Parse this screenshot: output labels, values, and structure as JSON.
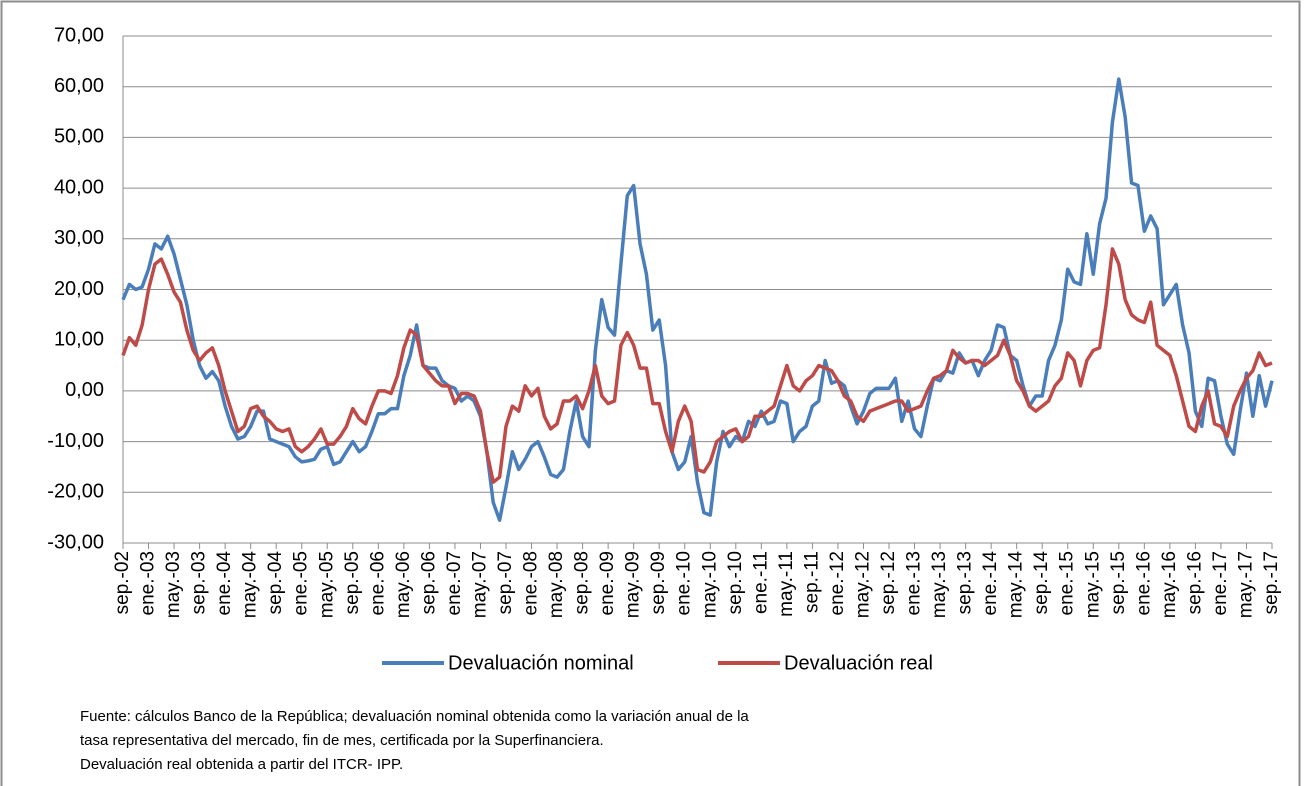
{
  "chart_data": {
    "type": "line",
    "categories": [
      "sep.-02",
      null,
      null,
      null,
      "ene.-03",
      null,
      null,
      null,
      "may.-03",
      null,
      null,
      null,
      "sep.-03",
      null,
      null,
      null,
      "ene.-04",
      null,
      null,
      null,
      "may.-04",
      null,
      null,
      null,
      "sep.-04",
      null,
      null,
      null,
      "ene.-05",
      null,
      null,
      null,
      "may.-05",
      null,
      null,
      null,
      "sep.-05",
      null,
      null,
      null,
      "ene.-06",
      null,
      null,
      null,
      "may.-06",
      null,
      null,
      null,
      "sep.-06",
      null,
      null,
      null,
      "ene.-07",
      null,
      null,
      null,
      "may.-07",
      null,
      null,
      null,
      "sep.-07",
      null,
      null,
      null,
      "ene.-08",
      null,
      null,
      null,
      "may.-08",
      null,
      null,
      null,
      "sep.-08",
      null,
      null,
      null,
      "ene.-09",
      null,
      null,
      null,
      "may.-09",
      null,
      null,
      null,
      "sep.-09",
      null,
      null,
      null,
      "ene.-10",
      null,
      null,
      null,
      "may.-10",
      null,
      null,
      null,
      "sep.-10",
      null,
      null,
      null,
      "ene.-11",
      null,
      null,
      null,
      "may.-11",
      null,
      null,
      null,
      "sep.-11",
      null,
      null,
      null,
      "ene.-12",
      null,
      null,
      null,
      "may.-12",
      null,
      null,
      null,
      "sep.-12",
      null,
      null,
      null,
      "ene.-13",
      null,
      null,
      null,
      "may.-13",
      null,
      null,
      null,
      "sep.-13",
      null,
      null,
      null,
      "ene.-14",
      null,
      null,
      null,
      "may.-14",
      null,
      null,
      null,
      "sep.-14",
      null,
      null,
      null,
      "ene.-15",
      null,
      null,
      null,
      "may.-15",
      null,
      null,
      null,
      "sep.-15",
      null,
      null,
      null,
      "ene.-16",
      null,
      null,
      null,
      "may.-16",
      null,
      null,
      null,
      "sep.-16",
      null,
      null,
      null,
      "ene.-17",
      null,
      null,
      null,
      "may.-17",
      null,
      null,
      null,
      "sep.-17"
    ],
    "series": [
      {
        "name": "Devaluación nominal",
        "color": "#4a7ebb",
        "values": [
          18,
          21,
          20,
          20.5,
          24,
          29,
          28,
          30.5,
          27,
          22,
          17,
          10,
          5,
          2.5,
          3.8,
          2,
          -3,
          -7,
          -9.5,
          -9,
          -7,
          -4,
          -4,
          -9.5,
          -10,
          -10.5,
          -11,
          -13,
          -14,
          -13.8,
          -13.5,
          -11.5,
          -11,
          -14.5,
          -14,
          -12,
          -10,
          -12,
          -11,
          -8,
          -4.5,
          -4.5,
          -3.5,
          -3.5,
          3,
          7,
          13,
          5,
          4.5,
          4.5,
          2,
          1,
          0.5,
          -2,
          -1,
          -2,
          -5,
          -12,
          -22,
          -25.5,
          -19,
          -12,
          -15.5,
          -13.5,
          -11,
          -10,
          -13,
          -16.5,
          -17,
          -15.5,
          -8,
          -2,
          -9,
          -11,
          8,
          18,
          12.5,
          11,
          25,
          38.5,
          40.5,
          29,
          23,
          12,
          14,
          5,
          -12,
          -15.5,
          -14,
          -9,
          -18,
          -24,
          -24.5,
          -14,
          -8,
          -11,
          -9,
          -10,
          -6,
          -7,
          -4,
          -6.5,
          -6,
          -2,
          -2.5,
          -10,
          -8,
          -7,
          -3,
          -2,
          6,
          1.5,
          2,
          1,
          -3,
          -6.5,
          -4,
          -0.5,
          0.5,
          0.5,
          0.5,
          2.5,
          -6,
          -2,
          -7.5,
          -9,
          -3,
          2.5,
          2,
          4,
          3.5,
          7.5,
          5.5,
          6,
          3,
          6,
          8,
          13,
          12.5,
          7,
          6,
          1,
          -3,
          -1,
          -1,
          6,
          9,
          14,
          24,
          21.5,
          21,
          31,
          23,
          33,
          38,
          53,
          61.5,
          54,
          41,
          40.5,
          31.5,
          34.5,
          32,
          17,
          19,
          21,
          13,
          7.5,
          -4,
          -7,
          2.5,
          2,
          -5,
          -10.5,
          -12.5,
          -4,
          3.5,
          -5,
          3,
          -3,
          2
        ]
      },
      {
        "name": "Devaluación real",
        "color": "#be4b48",
        "values": [
          7,
          10.5,
          9,
          13,
          20,
          25,
          26,
          23,
          19.5,
          17.5,
          12,
          8,
          6,
          7.5,
          8.5,
          5,
          0,
          -4,
          -8,
          -7,
          -3.5,
          -3,
          -5,
          -6,
          -7.5,
          -8,
          -7.5,
          -11,
          -12,
          -11,
          -9.5,
          -7.5,
          -10.5,
          -10.5,
          -9,
          -7,
          -3.5,
          -5.5,
          -6.5,
          -3,
          0,
          0,
          -0.5,
          3,
          8.5,
          12,
          11,
          5,
          3.5,
          2,
          1,
          1,
          -2.5,
          -0.5,
          -0.5,
          -1,
          -4,
          -12,
          -18,
          -17,
          -7,
          -3,
          -4,
          1,
          -1,
          0.5,
          -5,
          -7.5,
          -6.5,
          -2,
          -2,
          -1,
          -3.5,
          0,
          5,
          -1,
          -2.5,
          -2,
          9,
          11.5,
          9,
          4.5,
          4.5,
          -2.5,
          -2.5,
          -8,
          -12,
          -6,
          -3,
          -6,
          -15.5,
          -16,
          -14,
          -10,
          -9,
          -8,
          -7.5,
          -10,
          -9,
          -5,
          -5,
          -4,
          -3,
          1,
          5,
          1,
          0,
          2,
          3,
          5,
          4.5,
          4,
          2,
          -1,
          -2,
          -5,
          -6,
          -4,
          -3.5,
          -3,
          -2.5,
          -2,
          -2,
          -4,
          -3.5,
          -3,
          0,
          2.5,
          3,
          4,
          8,
          6.5,
          5.5,
          6,
          6,
          5,
          6,
          7,
          10,
          7,
          2,
          0,
          -3,
          -4,
          -3,
          -2,
          1,
          2.5,
          7.5,
          6,
          1,
          6,
          8,
          8.5,
          17,
          28,
          25,
          18,
          15,
          14,
          13.5,
          17.5,
          9,
          8,
          7,
          3,
          -2,
          -7,
          -8,
          -3,
          0,
          -6.5,
          -7,
          -9,
          -3,
          0,
          2.5,
          4,
          7.5,
          5,
          5.5
        ]
      }
    ],
    "ylim": [
      -30,
      70
    ],
    "yticks": [
      {
        "value": -30,
        "label": "-30,00"
      },
      {
        "value": -20,
        "label": "-20,00"
      },
      {
        "value": -10,
        "label": "-10,00"
      },
      {
        "value": 0,
        "label": "0,00"
      },
      {
        "value": 10,
        "label": "10,00"
      },
      {
        "value": 20,
        "label": "20,00"
      },
      {
        "value": 30,
        "label": "30,00"
      },
      {
        "value": 40,
        "label": "40,00"
      },
      {
        "value": 50,
        "label": "50,00"
      },
      {
        "value": 60,
        "label": "60,00"
      },
      {
        "value": 70,
        "label": "70,00"
      }
    ],
    "grid": true,
    "legend": "bottom",
    "note": [
      "Fuente: cálculos Banco de la República; devaluación nominal obtenida como la variación anual de la",
      "tasa representativa del mercado, fin de mes, certificada por la Superfinanciera.",
      "Devaluación real obtenida a partir del ITCR- IPP."
    ]
  }
}
